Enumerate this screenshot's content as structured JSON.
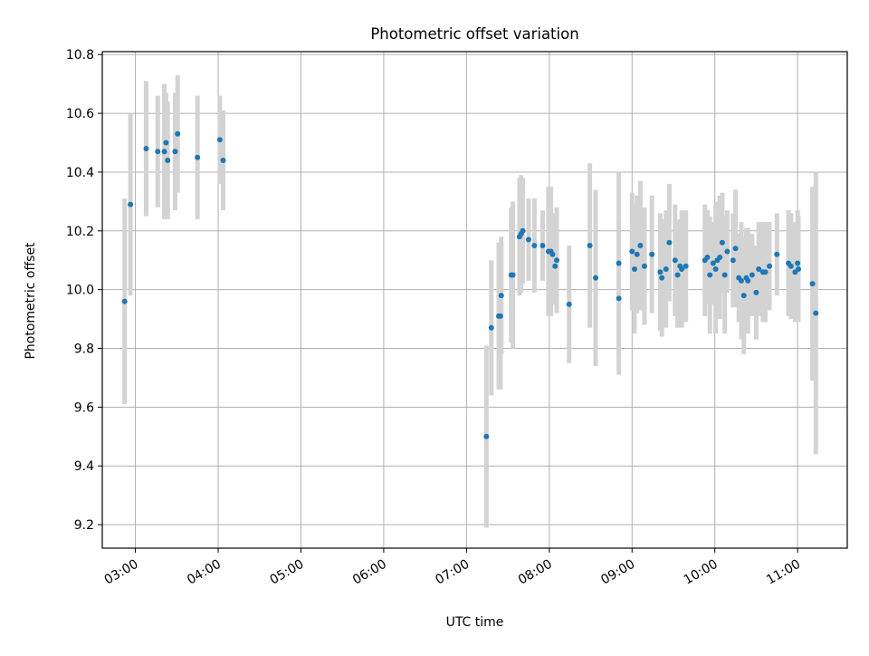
{
  "chart_data": {
    "type": "scatter",
    "title": "Photometric offset variation",
    "xlabel": "UTC time",
    "ylabel": "Photometric offset",
    "x_unit": "hours UTC",
    "xlim": [
      2.6,
      11.6
    ],
    "ylim": [
      9.12,
      10.81
    ],
    "x_ticks": [
      3,
      4,
      5,
      6,
      7,
      8,
      9,
      10,
      11
    ],
    "x_tick_labels": [
      "03:00",
      "04:00",
      "05:00",
      "06:00",
      "07:00",
      "08:00",
      "09:00",
      "10:00",
      "11:00"
    ],
    "y_ticks": [
      9.2,
      9.4,
      9.6,
      9.8,
      10.0,
      10.2,
      10.4,
      10.6,
      10.8
    ],
    "y_tick_labels": [
      "9.2",
      "9.4",
      "9.6",
      "9.8",
      "10.0",
      "10.2",
      "10.4",
      "10.6",
      "10.8"
    ],
    "grid": true,
    "colors": {
      "points": "#1f77b4",
      "errorbars": "#d3d3d3",
      "grid": "#b0b0b0"
    },
    "series": [
      {
        "x": [
          2.87,
          2.94,
          3.13,
          3.27,
          3.35,
          3.37,
          3.39,
          3.48,
          3.51,
          3.75,
          4.02,
          4.06,
          7.24,
          7.3,
          7.39,
          7.41,
          7.42,
          7.54,
          7.56,
          7.64,
          7.66,
          7.68,
          7.75,
          7.82,
          7.92,
          7.99,
          8.02,
          8.04,
          8.07,
          8.09,
          8.24,
          8.49,
          8.56,
          8.84,
          8.84,
          9.0,
          9.03,
          9.06,
          9.1,
          9.15,
          9.24,
          9.34,
          9.36,
          9.41,
          9.45,
          9.52,
          9.55,
          9.58,
          9.6,
          9.65,
          9.88,
          9.91,
          9.94,
          9.98,
          10.01,
          10.03,
          10.06,
          10.09,
          10.12,
          10.15,
          10.22,
          10.25,
          10.29,
          10.32,
          10.35,
          10.38,
          10.4,
          10.45,
          10.5,
          10.53,
          10.58,
          10.61,
          10.66,
          10.75,
          10.89,
          10.92,
          10.97,
          11.0,
          11.01,
          11.18,
          11.22
        ],
        "y": [
          9.96,
          10.29,
          10.48,
          10.47,
          10.47,
          10.5,
          10.44,
          10.47,
          10.53,
          10.45,
          10.51,
          10.44,
          9.5,
          9.87,
          9.91,
          9.91,
          9.98,
          10.05,
          10.05,
          10.18,
          10.19,
          10.2,
          10.17,
          10.15,
          10.15,
          10.13,
          10.13,
          10.12,
          10.08,
          10.1,
          9.95,
          10.15,
          10.04,
          9.97,
          10.09,
          10.13,
          10.07,
          10.12,
          10.15,
          10.08,
          10.12,
          10.06,
          10.04,
          10.07,
          10.16,
          10.1,
          10.05,
          10.08,
          10.07,
          10.08,
          10.1,
          10.11,
          10.05,
          10.09,
          10.07,
          10.1,
          10.11,
          10.16,
          10.05,
          10.13,
          10.1,
          10.14,
          10.04,
          10.03,
          9.98,
          10.04,
          10.03,
          10.05,
          9.99,
          10.07,
          10.06,
          10.06,
          10.08,
          10.12,
          10.09,
          10.08,
          10.06,
          10.09,
          10.07,
          10.02,
          9.92
        ],
        "yerr": [
          0.35,
          0.31,
          0.23,
          0.19,
          0.23,
          0.17,
          0.2,
          0.2,
          0.2,
          0.21,
          0.15,
          0.17,
          0.31,
          0.23,
          0.25,
          0.25,
          0.2,
          0.23,
          0.25,
          0.2,
          0.2,
          0.18,
          0.14,
          0.16,
          0.12,
          0.22,
          0.22,
          0.14,
          0.13,
          0.18,
          0.2,
          0.28,
          0.3,
          0.26,
          0.31,
          0.2,
          0.22,
          0.2,
          0.22,
          0.2,
          0.2,
          0.2,
          0.2,
          0.2,
          0.2,
          0.19,
          0.18,
          0.16,
          0.2,
          0.19,
          0.19,
          0.16,
          0.2,
          0.14,
          0.22,
          0.2,
          0.21,
          0.17,
          0.2,
          0.14,
          0.16,
          0.2,
          0.15,
          0.2,
          0.2,
          0.17,
          0.18,
          0.14,
          0.16,
          0.16,
          0.17,
          0.17,
          0.15,
          0.14,
          0.18,
          0.18,
          0.17,
          0.18,
          0.18,
          0.33,
          0.48
        ]
      }
    ]
  }
}
